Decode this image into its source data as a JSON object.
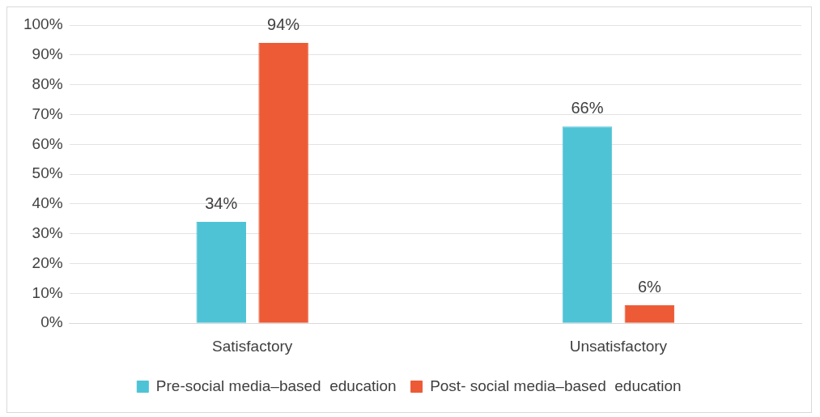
{
  "chart_data": {
    "type": "bar",
    "categories": [
      "Satisfactory",
      "Unsatisfactory"
    ],
    "series": [
      {
        "name": "Pre-social media–based  education",
        "color": "#4fc3d6",
        "values": [
          34,
          66
        ],
        "value_labels": [
          "34%",
          "66%"
        ]
      },
      {
        "name": "Post- social media–based  education",
        "color": "#ec5a36",
        "values": [
          94,
          6
        ],
        "value_labels": [
          "94%",
          "6%"
        ]
      }
    ],
    "ylim": [
      0,
      100
    ],
    "yticks": [
      {
        "value": 0,
        "label": "0%"
      },
      {
        "value": 10,
        "label": "10%"
      },
      {
        "value": 20,
        "label": "20%"
      },
      {
        "value": 30,
        "label": "30%"
      },
      {
        "value": 40,
        "label": "40%"
      },
      {
        "value": 50,
        "label": "50%"
      },
      {
        "value": 60,
        "label": "60%"
      },
      {
        "value": 70,
        "label": "70%"
      },
      {
        "value": 80,
        "label": "80%"
      },
      {
        "value": 90,
        "label": "90%"
      },
      {
        "value": 100,
        "label": "100%"
      }
    ],
    "grid": "y",
    "legend": "bottom"
  }
}
